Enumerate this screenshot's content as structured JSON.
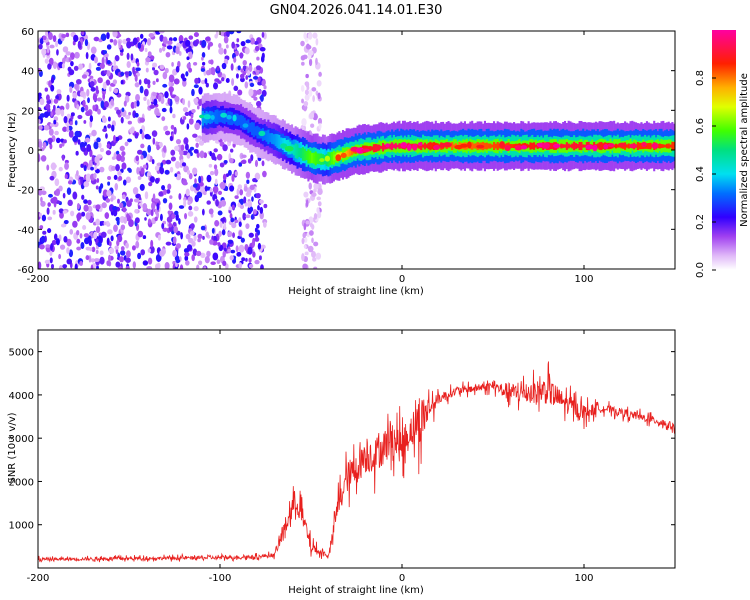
{
  "title": "GN04.2026.041.14.01.E30",
  "colors": {
    "snr_line": "#e8201e",
    "purple_dark": "#5a10e0",
    "purple_light": "#c8a8f0",
    "background": "#ffffff"
  },
  "chart_data": [
    {
      "type": "heatmap",
      "title": "GN04.2026.041.14.01.E30",
      "xlabel": "Height of straight line (km)",
      "ylabel": "Frequency (Hz)",
      "xlim": [
        -200,
        150
      ],
      "ylim": [
        -60,
        60
      ],
      "xticks": [
        -200,
        -100,
        0,
        100
      ],
      "xtick_labels": [
        "-200",
        "-100",
        "0",
        "100"
      ],
      "yticks": [
        -60,
        -40,
        -20,
        0,
        20,
        40,
        60
      ],
      "ytick_labels": [
        "-60",
        "-40",
        "-20",
        "0",
        "20",
        "40",
        "60"
      ],
      "colorbar": {
        "label": "Normalized spectral amplitude",
        "range": [
          0,
          1
        ],
        "ticks": [
          0,
          0.2,
          0.4,
          0.6,
          0.8
        ],
        "tick_labels": [
          "0.0",
          "0.2",
          "0.4",
          "0.6",
          "0.8"
        ],
        "colormap": "rainbow (white-purple-blue-cyan-green-yellow-red-magenta)"
      },
      "ridge": {
        "description": "dominant frequency ridge vs height",
        "x": [
          -110,
          -100,
          -90,
          -80,
          -70,
          -60,
          -50,
          -42,
          -35,
          -25,
          -15,
          -5,
          0,
          10,
          30,
          60,
          80,
          100,
          120,
          150
        ],
        "y": [
          16,
          17,
          15,
          9,
          5,
          0,
          -4,
          -5,
          -3,
          0,
          1,
          2,
          2,
          2,
          2,
          2,
          2,
          2,
          2,
          2
        ],
        "amplitude": [
          0.35,
          0.3,
          0.3,
          0.3,
          0.35,
          0.45,
          0.6,
          0.5,
          0.7,
          0.85,
          0.9,
          0.95,
          0.92,
          0.9,
          0.8,
          0.85,
          0.9,
          0.9,
          0.85,
          0.85
        ]
      },
      "noise_regions": [
        {
          "x_range": [
            -200,
            -75
          ],
          "y_range": [
            -60,
            60
          ],
          "amplitude": "0.05-0.25"
        },
        {
          "x_range": [
            -55,
            -45
          ],
          "y_range": [
            -60,
            60
          ],
          "amplitude": "0.0-0.1"
        }
      ]
    },
    {
      "type": "line",
      "xlabel": "Height of straight line (km)",
      "ylabel": "SNR (10 * v/v)",
      "xlim": [
        -200,
        150
      ],
      "ylim": [
        0,
        5500
      ],
      "xticks": [
        -200,
        -100,
        0,
        100
      ],
      "xtick_labels": [
        "-200",
        "-100",
        "0",
        "100"
      ],
      "yticks": [
        1000,
        2000,
        3000,
        4000,
        5000
      ],
      "ytick_labels": [
        "1000",
        "2000",
        "3000",
        "4000",
        "5000"
      ],
      "series": [
        {
          "name": "SNR",
          "color": "#e8201e",
          "x": [
            -200,
            -150,
            -100,
            -80,
            -70,
            -62,
            -58,
            -55,
            -50,
            -45,
            -40,
            -35,
            -30,
            -25,
            -20,
            -15,
            -10,
            -5,
            0,
            5,
            10,
            15,
            20,
            30,
            40,
            50,
            60,
            70,
            80,
            90,
            100,
            110,
            120,
            130,
            140,
            150
          ],
          "y": [
            200,
            220,
            240,
            260,
            300,
            1200,
            1600,
            1200,
            500,
            350,
            300,
            1500,
            2100,
            2300,
            2600,
            2600,
            2800,
            3000,
            2800,
            3200,
            3400,
            3700,
            3900,
            4100,
            4150,
            4200,
            4050,
            4050,
            4100,
            3800,
            3600,
            3700,
            3600,
            3500,
            3400,
            3250
          ],
          "envelope_halfwidth": [
            80,
            80,
            90,
            90,
            100,
            600,
            700,
            600,
            300,
            150,
            150,
            600,
            800,
            800,
            900,
            900,
            900,
            900,
            900,
            800,
            1300,
            600,
            250,
            200,
            200,
            200,
            500,
            500,
            700,
            500,
            400,
            200,
            200,
            200,
            200,
            200
          ]
        }
      ]
    }
  ]
}
